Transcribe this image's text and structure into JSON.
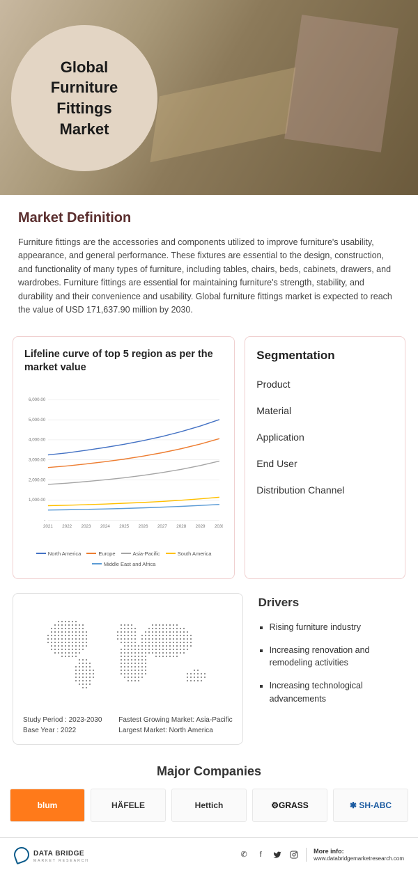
{
  "hero": {
    "title_l1": "Global",
    "title_l2": "Furniture Fittings",
    "title_l3": "Market",
    "circle_color": "#e3d5c4"
  },
  "definition": {
    "heading": "Market Definition",
    "heading_color": "#5a2e2e",
    "text": "Furniture fittings are the accessories and components utilized to improve furniture's usability, appearance, and general performance. These fixtures are essential to the design, construction, and functionality of many types of furniture, including tables, chairs, beds, cabinets, drawers, and wardrobes. Furniture fittings are essential for maintaining furniture's strength, stability, and durability and their convenience and usability. Global furniture fittings market is expected to reach the value of USD 171,637.90 million by 2030."
  },
  "chart": {
    "title": "Lifeline curve of top 5 region as per the market value",
    "type": "line",
    "years": [
      "2021",
      "2022",
      "2023",
      "2024",
      "2025",
      "2026",
      "2027",
      "2028",
      "2029",
      "2030"
    ],
    "ylim": [
      0,
      6000
    ],
    "ytick_step": 1000,
    "ylabels": [
      "-",
      "1,000.00",
      "2,000.00",
      "3,000.00",
      "4,000.00",
      "5,000.00",
      "6,000.00"
    ],
    "grid_color": "#dddddd",
    "background_color": "#ffffff",
    "label_fontsize": 7,
    "series": [
      {
        "name": "North America",
        "color": "#4472c4",
        "values": [
          3250,
          3350,
          3480,
          3620,
          3780,
          3960,
          4170,
          4410,
          4690,
          5010
        ]
      },
      {
        "name": "Europe",
        "color": "#ed7d31",
        "values": [
          2620,
          2700,
          2800,
          2910,
          3040,
          3190,
          3360,
          3560,
          3790,
          4060
        ]
      },
      {
        "name": "Asia-Pacific",
        "color": "#a5a5a5",
        "values": [
          1780,
          1840,
          1920,
          2010,
          2110,
          2230,
          2370,
          2530,
          2720,
          2940
        ]
      },
      {
        "name": "South America",
        "color": "#ffc000",
        "values": [
          720,
          740,
          770,
          800,
          840,
          880,
          930,
          990,
          1060,
          1140
        ]
      },
      {
        "name": "Middle East and Africa",
        "color": "#5b9bd5",
        "values": [
          500,
          515,
          535,
          555,
          580,
          610,
          645,
          685,
          730,
          780
        ]
      }
    ]
  },
  "segmentation": {
    "heading": "Segmentation",
    "items": [
      "Product",
      "Material",
      "Application",
      "End User",
      "Distribution Channel"
    ]
  },
  "map": {
    "dot_color": "#888888",
    "study_period_label": "Study Period : 2023-2030",
    "base_year_label": "Base Year : 2022",
    "fastest_label": "Fastest Growing Market: Asia-Pacific",
    "largest_label": "Largest Market: North America"
  },
  "drivers": {
    "heading": "Drivers",
    "items": [
      "Rising furniture industry",
      "Increasing renovation and remodeling activities",
      "Increasing technological advancements"
    ]
  },
  "companies": {
    "heading": "Major Companies",
    "list": [
      {
        "name": "blum",
        "bg": "#ff7a1a",
        "fg": "#ffffff"
      },
      {
        "name": "HÄFELE",
        "bg": "#fafafa",
        "fg": "#333333"
      },
      {
        "name": "Hettich",
        "bg": "#fafafa",
        "fg": "#333333"
      },
      {
        "name": "⚙GRASS",
        "bg": "#fafafa",
        "fg": "#111111"
      },
      {
        "name": "✱ SH-ABC",
        "bg": "#fafafa",
        "fg": "#1a5aa0"
      }
    ]
  },
  "footer": {
    "brand": "DATA BRIDGE",
    "sub": "MARKET RESEARCH",
    "more_label": "More info:",
    "more_url": "www.databridgemarketresearch.com"
  }
}
